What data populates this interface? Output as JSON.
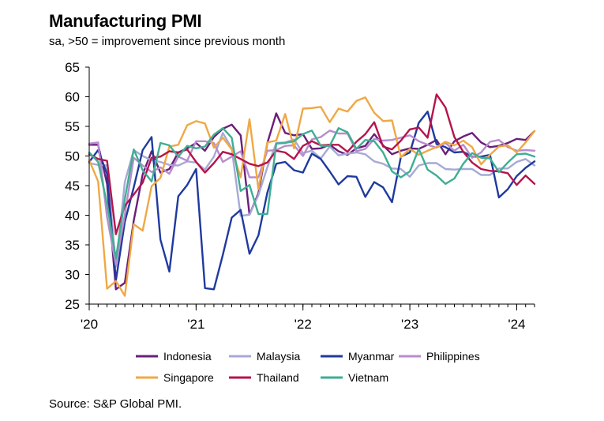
{
  "title": "Manufacturing PMI",
  "subtitle": "sa, >50 = improvement since previous month",
  "source": "Source: S&P Global PMI.",
  "chart_data": {
    "type": "line",
    "title": "Manufacturing PMI",
    "subtitle": "sa, >50 = improvement since previous month",
    "xlabel": "",
    "ylabel": "",
    "ylim": [
      25,
      65
    ],
    "yticks": [
      25,
      30,
      35,
      40,
      45,
      50,
      55,
      60,
      65
    ],
    "xticks": [
      {
        "index": 0,
        "label": "'20"
      },
      {
        "index": 12,
        "label": "'21"
      },
      {
        "index": 24,
        "label": "'22"
      },
      {
        "index": 36,
        "label": "'23"
      },
      {
        "index": 48,
        "label": "'24"
      }
    ],
    "x_start": "2020-01",
    "x_end": "2024-03",
    "grid": false,
    "legend_position": "bottom",
    "series": [
      {
        "name": "Indonesia",
        "color": "#6a1f7a",
        "values": [
          51.9,
          51.9,
          45.3,
          27.5,
          28.6,
          39.1,
          46.9,
          50.8,
          47.2,
          47.8,
          50.6,
          51.3,
          52.2,
          50.9,
          53.2,
          54.6,
          55.3,
          53.5,
          40.1,
          43.7,
          52.2,
          57.2,
          53.9,
          53.5,
          53.7,
          51.2,
          51.3,
          51.9,
          50.8,
          50.2,
          51.3,
          51.7,
          53.7,
          51.8,
          50.3,
          50.9,
          51.3,
          51.2,
          51.9,
          52.7,
          50.3,
          52.5,
          53.3,
          53.9,
          52.3,
          51.5,
          51.7,
          52.2,
          52.9,
          52.7,
          54.2
        ]
      },
      {
        "name": "Malaysia",
        "color": "#a7a9d6",
        "values": [
          48.8,
          48.5,
          48.4,
          31.3,
          45.6,
          51.0,
          50.0,
          49.3,
          49.0,
          48.5,
          48.4,
          49.1,
          48.9,
          47.7,
          49.9,
          53.9,
          51.3,
          39.9,
          40.1,
          43.4,
          48.1,
          52.2,
          52.3,
          52.8,
          50.5,
          50.9,
          49.6,
          51.6,
          50.1,
          50.4,
          50.6,
          50.3,
          49.1,
          48.7,
          47.9,
          47.8,
          46.5,
          48.4,
          48.8,
          48.8,
          47.8,
          47.7,
          47.8,
          47.8,
          46.8,
          46.8,
          47.9,
          47.9,
          49.0,
          49.5,
          48.4
        ]
      },
      {
        "name": "Myanmar",
        "color": "#1f3a9e",
        "values": [
          49.0,
          51.0,
          47.0,
          29.0,
          38.9,
          44.7,
          51.0,
          53.2,
          35.9,
          30.5,
          43.2,
          45.1,
          47.8,
          27.7,
          27.5,
          33.3,
          39.6,
          40.9,
          33.5,
          36.6,
          43.8,
          48.7,
          49.0,
          47.6,
          47.2,
          50.4,
          49.5,
          47.4,
          45.2,
          46.6,
          46.5,
          43.1,
          45.6,
          44.7,
          42.2,
          49.9,
          50.6,
          55.6,
          57.5,
          52.0,
          51.5,
          50.6,
          50.7,
          49.9,
          49.9,
          50.2,
          43.0,
          44.4,
          46.6,
          48.0,
          49.1
        ]
      },
      {
        "name": "Philippines",
        "color": "#b88ccf",
        "values": [
          52.1,
          52.3,
          39.7,
          31.6,
          40.1,
          49.7,
          48.4,
          47.3,
          48.1,
          47.0,
          49.9,
          49.2,
          52.5,
          52.5,
          52.2,
          49.0,
          49.9,
          50.8,
          46.4,
          46.4,
          50.9,
          51.0,
          51.7,
          51.8,
          50.0,
          52.8,
          53.2,
          54.3,
          53.8,
          53.8,
          50.8,
          51.2,
          52.9,
          52.6,
          52.7,
          53.1,
          53.5,
          52.5,
          51.9,
          51.4,
          52.2,
          50.9,
          51.9,
          49.7,
          50.6,
          52.4,
          52.7,
          51.5,
          50.9,
          51.0,
          50.9
        ]
      },
      {
        "name": "Singapore",
        "color": "#f0a844",
        "values": [
          49.3,
          45.7,
          27.6,
          28.9,
          26.4,
          38.5,
          37.4,
          44.9,
          46.3,
          51.6,
          51.9,
          55.2,
          55.9,
          55.5,
          51.4,
          53.1,
          51.1,
          46.4,
          56.2,
          44.4,
          52.3,
          52.6,
          57.1,
          51.3,
          58.0,
          58.1,
          58.3,
          55.7,
          58.0,
          57.5,
          59.3,
          59.9,
          57.3,
          55.9,
          56.0,
          49.8,
          51.2,
          50.2,
          50.9,
          51.5,
          52.4,
          51.8,
          52.6,
          51.5,
          48.6,
          50.2,
          51.6,
          51.8,
          50.6,
          52.3,
          54.2
        ]
      },
      {
        "name": "Thailand",
        "color": "#b5144b",
        "values": [
          50.3,
          49.5,
          49.2,
          36.8,
          41.6,
          43.5,
          45.5,
          49.7,
          49.9,
          50.8,
          50.6,
          51.1,
          49.0,
          47.2,
          48.8,
          50.7,
          50.3,
          49.5,
          48.7,
          48.3,
          48.9,
          50.9,
          50.6,
          49.5,
          51.7,
          52.5,
          51.8,
          51.9,
          51.9,
          50.7,
          52.4,
          53.7,
          55.7,
          51.6,
          51.1,
          52.6,
          54.5,
          54.8,
          53.1,
          60.4,
          58.2,
          53.2,
          50.7,
          48.9,
          47.8,
          47.5,
          47.4,
          47.1,
          45.1,
          46.7,
          45.3
        ]
      },
      {
        "name": "Vietnam",
        "color": "#3fae92",
        "values": [
          50.6,
          49.0,
          41.9,
          32.7,
          42.7,
          51.1,
          47.6,
          45.7,
          52.2,
          51.8,
          49.9,
          51.7,
          51.3,
          51.6,
          53.6,
          54.7,
          53.1,
          44.1,
          45.1,
          40.2,
          40.2,
          52.1,
          52.2,
          52.5,
          53.7,
          54.3,
          51.7,
          51.7,
          54.7,
          54.0,
          51.2,
          52.7,
          52.5,
          50.6,
          47.4,
          46.4,
          47.4,
          51.2,
          47.7,
          46.7,
          45.3,
          46.2,
          48.7,
          50.5,
          49.7,
          49.6,
          47.3,
          48.9,
          50.3,
          50.4,
          49.9
        ]
      }
    ]
  }
}
